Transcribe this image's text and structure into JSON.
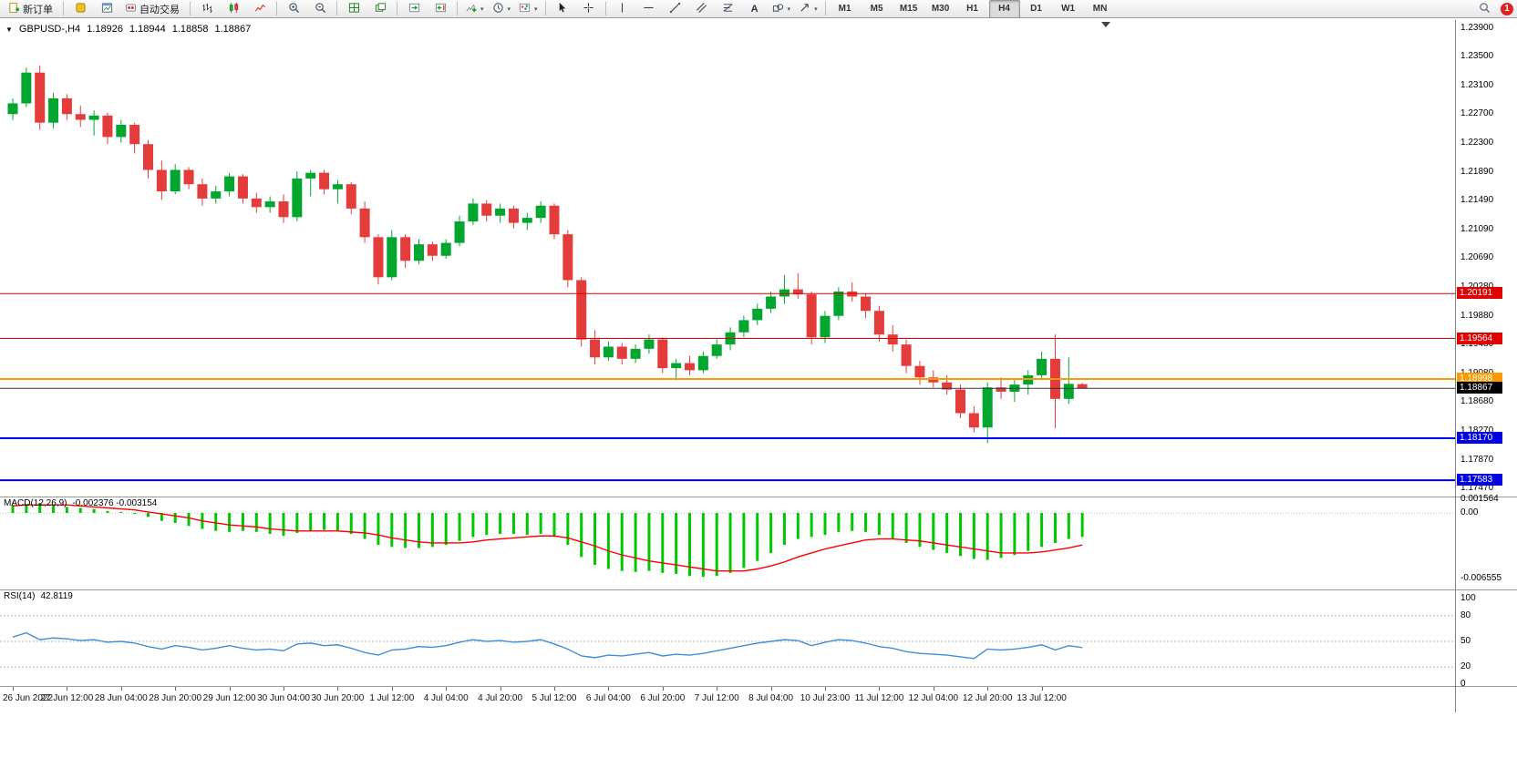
{
  "app": {
    "window_title": "GBPUSD-,H4"
  },
  "colors": {
    "bull": "#00A62E",
    "bear": "#E43B3B",
    "macd_histogram": "#00C800",
    "macd_signal": "#FF0000",
    "rsi": "#3E8FD8",
    "level_red": "#E00000",
    "level_orange": "#FF9900",
    "level_blue": "#0000FF",
    "current_price_bg": "#000000",
    "accent_active": "#DCDCDC"
  },
  "icons": {
    "caret": "▾",
    "one_click": "▼",
    "text_tool": "A"
  },
  "toolbar": {
    "new_order": "新订单",
    "autotrading": "自动交易",
    "timeframes": [
      "M1",
      "M5",
      "M15",
      "M30",
      "H1",
      "H4",
      "D1",
      "W1",
      "MN"
    ],
    "active_timeframe": "H4",
    "notification_count": "1"
  },
  "chart": {
    "symbol_period": "GBPUSD-,H4",
    "ohlc": {
      "open": "1.18926",
      "high": "1.18944",
      "low": "1.18858",
      "close": "1.18867"
    },
    "price_axis": [
      "1.23900",
      "1.23500",
      "1.23100",
      "1.22700",
      "1.22300",
      "1.21890",
      "1.21490",
      "1.21090",
      "1.20690",
      "1.20280",
      "1.19880",
      "1.19480",
      "1.19080",
      "1.18680",
      "1.18270",
      "1.17870",
      "1.17470"
    ],
    "levels": [
      {
        "price": 1.20191,
        "color": "#E00000",
        "width": 1
      },
      {
        "price": 1.19564,
        "color": "#E00000",
        "width": 1
      },
      {
        "price": 1.18998,
        "color": "#FF9900",
        "width": 2
      },
      {
        "price": 1.18867,
        "color": "#333333",
        "width": 1
      },
      {
        "price": 1.1817,
        "color": "#0000FF",
        "width": 2
      },
      {
        "price": 1.17583,
        "color": "#0000CC",
        "width": 2
      }
    ],
    "axis_tags": [
      {
        "text": "1.20191",
        "price": 1.20191,
        "bg": "#E00000"
      },
      {
        "text": "1.19564",
        "price": 1.19564,
        "bg": "#E00000"
      },
      {
        "text": "1.18998",
        "price": 1.18998,
        "bg": "#FF9900"
      },
      {
        "text": "1.18867",
        "price": 1.18867,
        "bg": "#000000"
      },
      {
        "text": "1.18170",
        "price": 1.1817,
        "bg": "#0000E0"
      },
      {
        "text": "1.17583",
        "price": 1.17583,
        "bg": "#0000E0"
      }
    ]
  },
  "macd": {
    "name": "MACD(12,26,9)",
    "values_text": "-0.002376 -0.003154",
    "axis": [
      "0.001564",
      "0.00",
      "-0.006555"
    ]
  },
  "rsi": {
    "name": "RSI(14)",
    "value_text": "42.8119",
    "axis": [
      "100",
      "80",
      "50",
      "20",
      "0"
    ],
    "levels": [
      80,
      50,
      20
    ]
  },
  "chart_data": {
    "type": "candlestick",
    "symbol": "GBPUSD-",
    "timeframe": "H4",
    "price_range": {
      "min": 1.1747,
      "max": 1.239
    },
    "time_labels": [
      "26 Jun 2022",
      "27 Jun 12:00",
      "28 Jun 04:00",
      "28 Jun 20:00",
      "29 Jun 12:00",
      "30 Jun 04:00",
      "30 Jun 20:00",
      "1 Jul 12:00",
      "4 Jul 04:00",
      "4 Jul 20:00",
      "5 Jul 12:00",
      "6 Jul 04:00",
      "6 Jul 20:00",
      "7 Jul 12:00",
      "8 Jul 04:00",
      "10 Jul 23:00",
      "11 Jul 12:00",
      "12 Jul 04:00",
      "12 Jul 20:00",
      "13 Jul 12:00"
    ],
    "candles": [
      [
        1.227,
        1.2292,
        1.2262,
        1.2285
      ],
      [
        1.2285,
        1.2335,
        1.228,
        1.2328
      ],
      [
        1.2328,
        1.2338,
        1.2248,
        1.2258
      ],
      [
        1.2258,
        1.23,
        1.225,
        1.2292
      ],
      [
        1.2292,
        1.2298,
        1.2262,
        1.227
      ],
      [
        1.227,
        1.2282,
        1.2252,
        1.2262
      ],
      [
        1.2262,
        1.2275,
        1.224,
        1.2268
      ],
      [
        1.2268,
        1.2272,
        1.2228,
        1.2238
      ],
      [
        1.2238,
        1.2262,
        1.223,
        1.2255
      ],
      [
        1.2255,
        1.2258,
        1.2215,
        1.2228
      ],
      [
        1.2228,
        1.2234,
        1.218,
        1.2192
      ],
      [
        1.2192,
        1.2205,
        1.215,
        1.2162
      ],
      [
        1.2162,
        1.22,
        1.2158,
        1.2192
      ],
      [
        1.2192,
        1.2196,
        1.2165,
        1.2172
      ],
      [
        1.2172,
        1.218,
        1.2142,
        1.2152
      ],
      [
        1.2152,
        1.217,
        1.2145,
        1.2162
      ],
      [
        1.2162,
        1.2188,
        1.2155,
        1.2183
      ],
      [
        1.2183,
        1.2186,
        1.2145,
        1.2152
      ],
      [
        1.2152,
        1.216,
        1.2132,
        1.214
      ],
      [
        1.214,
        1.2155,
        1.2132,
        1.2148
      ],
      [
        1.2148,
        1.2158,
        1.2118,
        1.2126
      ],
      [
        1.2126,
        1.219,
        1.212,
        1.218
      ],
      [
        1.218,
        1.2192,
        1.2155,
        1.2188
      ],
      [
        1.2188,
        1.2192,
        1.2158,
        1.2165
      ],
      [
        1.2165,
        1.2178,
        1.2145,
        1.2172
      ],
      [
        1.2172,
        1.2175,
        1.213,
        1.2138
      ],
      [
        1.2138,
        1.2148,
        1.209,
        1.2098
      ],
      [
        1.2098,
        1.2102,
        1.2032,
        1.2042
      ],
      [
        1.2042,
        1.2108,
        1.2038,
        1.2098
      ],
      [
        1.2098,
        1.2102,
        1.2055,
        1.2065
      ],
      [
        1.2065,
        1.2095,
        1.206,
        1.2088
      ],
      [
        1.2088,
        1.2092,
        1.2065,
        1.2072
      ],
      [
        1.2072,
        1.2095,
        1.2068,
        1.209
      ],
      [
        1.209,
        1.2128,
        1.2085,
        1.212
      ],
      [
        1.212,
        1.2152,
        1.2115,
        1.2145
      ],
      [
        1.2145,
        1.215,
        1.212,
        1.2128
      ],
      [
        1.2128,
        1.2145,
        1.2118,
        1.2138
      ],
      [
        1.2138,
        1.2142,
        1.211,
        1.2118
      ],
      [
        1.2118,
        1.2132,
        1.2108,
        1.2125
      ],
      [
        1.2125,
        1.2148,
        1.2118,
        1.2142
      ],
      [
        1.2142,
        1.2145,
        1.2095,
        1.2102
      ],
      [
        1.2102,
        1.2108,
        1.2028,
        1.2038
      ],
      [
        1.2038,
        1.2042,
        1.1945,
        1.1955
      ],
      [
        1.1955,
        1.1968,
        1.192,
        1.193
      ],
      [
        1.193,
        1.1952,
        1.1925,
        1.1945
      ],
      [
        1.1945,
        1.195,
        1.192,
        1.1928
      ],
      [
        1.1928,
        1.1948,
        1.1922,
        1.1942
      ],
      [
        1.1942,
        1.1962,
        1.1935,
        1.1955
      ],
      [
        1.1955,
        1.1958,
        1.1908,
        1.1915
      ],
      [
        1.1915,
        1.1928,
        1.1898,
        1.1922
      ],
      [
        1.1922,
        1.1932,
        1.1905,
        1.1912
      ],
      [
        1.1912,
        1.1938,
        1.1908,
        1.1932
      ],
      [
        1.1932,
        1.1955,
        1.1928,
        1.1948
      ],
      [
        1.1948,
        1.1972,
        1.194,
        1.1965
      ],
      [
        1.1965,
        1.1988,
        1.1958,
        1.1982
      ],
      [
        1.1982,
        1.2005,
        1.1975,
        1.1998
      ],
      [
        1.1998,
        1.2022,
        1.1992,
        1.2015
      ],
      [
        1.2015,
        1.2045,
        1.2005,
        1.2025
      ],
      [
        1.2025,
        1.2048,
        1.2012,
        1.2018
      ],
      [
        1.2018,
        1.2022,
        1.1948,
        1.1958
      ],
      [
        1.1958,
        1.1995,
        1.195,
        1.1988
      ],
      [
        1.1988,
        1.2028,
        1.1982,
        1.2022
      ],
      [
        1.2022,
        1.2035,
        1.2008,
        1.2015
      ],
      [
        1.2015,
        1.202,
        1.1985,
        1.1995
      ],
      [
        1.1995,
        1.2002,
        1.1952,
        1.1962
      ],
      [
        1.1962,
        1.1975,
        1.1938,
        1.1948
      ],
      [
        1.1948,
        1.1955,
        1.1908,
        1.1918
      ],
      [
        1.1918,
        1.1925,
        1.1892,
        1.1902
      ],
      [
        1.1902,
        1.1912,
        1.1888,
        1.1895
      ],
      [
        1.1895,
        1.1905,
        1.1878,
        1.1885
      ],
      [
        1.1885,
        1.1892,
        1.1845,
        1.1852
      ],
      [
        1.1852,
        1.1862,
        1.1825,
        1.1832
      ],
      [
        1.1832,
        1.1895,
        1.181,
        1.1888
      ],
      [
        1.1888,
        1.1902,
        1.1872,
        1.1882
      ],
      [
        1.1882,
        1.1898,
        1.1868,
        1.1892
      ],
      [
        1.1892,
        1.1912,
        1.1878,
        1.1905
      ],
      [
        1.1905,
        1.1938,
        1.1898,
        1.1928
      ],
      [
        1.1928,
        1.1962,
        1.1831,
        1.1872
      ],
      [
        1.1872,
        1.193,
        1.1865,
        1.1893
      ],
      [
        1.18926,
        1.18944,
        1.18858,
        1.18867
      ]
    ],
    "macd_histogram": [
      0.0008,
      0.0009,
      0.001,
      0.0008,
      0.0006,
      0.0005,
      0.0004,
      0.0002,
      0.0001,
      -0.0001,
      -0.0004,
      -0.0008,
      -0.001,
      -0.0013,
      -0.0016,
      -0.0018,
      -0.0019,
      -0.0018,
      -0.0019,
      -0.0021,
      -0.0023,
      -0.002,
      -0.0018,
      -0.0017,
      -0.0018,
      -0.0021,
      -0.0026,
      -0.0032,
      -0.0034,
      -0.0035,
      -0.0035,
      -0.0034,
      -0.0032,
      -0.0028,
      -0.0024,
      -0.0022,
      -0.0021,
      -0.0021,
      -0.0022,
      -0.0021,
      -0.0024,
      -0.0032,
      -0.0044,
      -0.0052,
      -0.0056,
      -0.0058,
      -0.0059,
      -0.0058,
      -0.006,
      -0.0061,
      -0.0063,
      -0.0064,
      -0.0063,
      -0.006,
      -0.0055,
      -0.0048,
      -0.004,
      -0.0032,
      -0.0026,
      -0.0024,
      -0.0022,
      -0.0019,
      -0.0018,
      -0.0019,
      -0.0022,
      -0.0026,
      -0.003,
      -0.0034,
      -0.0037,
      -0.004,
      -0.0043,
      -0.0046,
      -0.0047,
      -0.0045,
      -0.0042,
      -0.0038,
      -0.0034,
      -0.003,
      -0.0026,
      -0.0024
    ],
    "macd_signal": [
      0.0007,
      0.0008,
      0.0008,
      0.0008,
      0.0008,
      0.0007,
      0.0006,
      0.0005,
      0.0004,
      0.0003,
      0.0001,
      -0.0001,
      -0.0003,
      -0.0005,
      -0.0008,
      -0.001,
      -0.0012,
      -0.0013,
      -0.0014,
      -0.0016,
      -0.0017,
      -0.0018,
      -0.0018,
      -0.0018,
      -0.0018,
      -0.0019,
      -0.002,
      -0.0022,
      -0.0025,
      -0.0027,
      -0.0029,
      -0.003,
      -0.003,
      -0.003,
      -0.0029,
      -0.0027,
      -0.0026,
      -0.0025,
      -0.0024,
      -0.0023,
      -0.0023,
      -0.0025,
      -0.0029,
      -0.0033,
      -0.0038,
      -0.0042,
      -0.0045,
      -0.0048,
      -0.005,
      -0.0052,
      -0.0054,
      -0.0056,
      -0.0058,
      -0.0058,
      -0.0058,
      -0.0056,
      -0.0053,
      -0.0049,
      -0.0044,
      -0.004,
      -0.0036,
      -0.0033,
      -0.003,
      -0.0027,
      -0.0026,
      -0.0026,
      -0.0027,
      -0.0028,
      -0.003,
      -0.0032,
      -0.0034,
      -0.0036,
      -0.0038,
      -0.004,
      -0.004,
      -0.004,
      -0.0039,
      -0.0037,
      -0.0035,
      -0.0032
    ],
    "rsi_values": [
      55,
      60,
      52,
      54,
      53,
      51,
      52,
      49,
      50,
      48,
      44,
      41,
      45,
      43,
      40,
      42,
      45,
      42,
      40,
      41,
      39,
      47,
      48,
      45,
      46,
      42,
      37,
      34,
      40,
      41,
      44,
      43,
      45,
      49,
      52,
      50,
      51,
      49,
      50,
      52,
      47,
      41,
      33,
      31,
      34,
      33,
      35,
      37,
      33,
      35,
      34,
      36,
      39,
      42,
      45,
      48,
      50,
      52,
      51,
      45,
      49,
      52,
      51,
      48,
      44,
      42,
      38,
      36,
      35,
      34,
      32,
      30,
      41,
      40,
      41,
      43,
      46,
      40,
      45,
      42.8
    ]
  }
}
